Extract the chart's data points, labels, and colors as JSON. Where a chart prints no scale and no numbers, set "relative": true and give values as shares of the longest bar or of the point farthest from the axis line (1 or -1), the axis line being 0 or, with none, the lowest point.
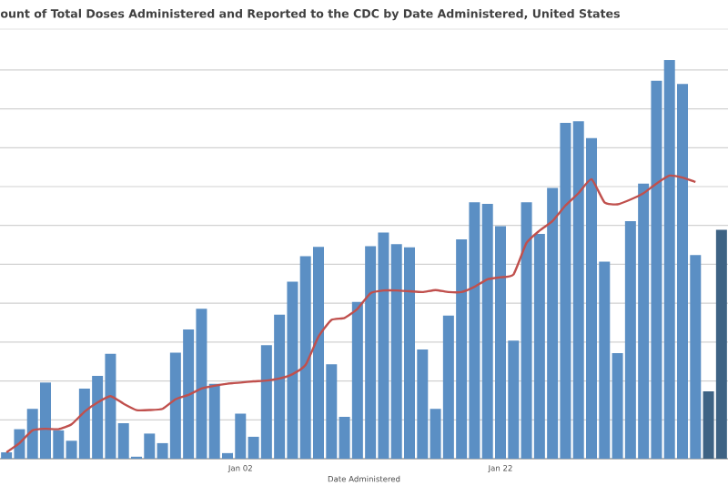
{
  "chart_data": {
    "type": "bar",
    "title": "ount of Total Doses Administered and Reported to the CDC by Date Administered, United States",
    "xlabel": "Date Administered",
    "relative": true,
    "grid": "y",
    "categories": [
      null,
      null,
      null,
      null,
      null,
      null,
      null,
      null,
      null,
      null,
      null,
      null,
      null,
      null,
      null,
      null,
      null,
      null,
      "Jan 02",
      null,
      null,
      null,
      null,
      null,
      null,
      null,
      null,
      null,
      null,
      null,
      null,
      null,
      null,
      null,
      null,
      null,
      null,
      null,
      "Jan 22",
      null,
      null,
      null,
      null,
      null,
      null,
      null,
      null,
      null,
      null,
      null,
      null,
      null,
      null,
      null,
      null,
      null
    ],
    "series": [
      {
        "type": "bar",
        "colors": [
          "#5b8fc4",
          "#5b8fc4",
          "#5b8fc4",
          "#5b8fc4",
          "#5b8fc4",
          "#5b8fc4",
          "#5b8fc4",
          "#5b8fc4",
          "#5b8fc4",
          "#5b8fc4",
          "#5b8fc4",
          "#5b8fc4",
          "#5b8fc4",
          "#5b8fc4",
          "#5b8fc4",
          "#5b8fc4",
          "#5b8fc4",
          "#5b8fc4",
          "#5b8fc4",
          "#5b8fc4",
          "#5b8fc4",
          "#5b8fc4",
          "#5b8fc4",
          "#5b8fc4",
          "#5b8fc4",
          "#5b8fc4",
          "#5b8fc4",
          "#5b8fc4",
          "#5b8fc4",
          "#5b8fc4",
          "#5b8fc4",
          "#5b8fc4",
          "#5b8fc4",
          "#5b8fc4",
          "#5b8fc4",
          "#5b8fc4",
          "#5b8fc4",
          "#5b8fc4",
          "#5b8fc4",
          "#5b8fc4",
          "#5b8fc4",
          "#5b8fc4",
          "#5b8fc4",
          "#5b8fc4",
          "#5b8fc4",
          "#5b8fc4",
          "#5b8fc4",
          "#5b8fc4",
          "#5b8fc4",
          "#5b8fc4",
          "#5b8fc4",
          "#5b8fc4",
          "#5b8fc4",
          "#5b8fc4",
          "#3e6384",
          "#3e6384"
        ],
        "values": [
          0.016,
          0.074,
          0.125,
          0.191,
          0.071,
          0.045,
          0.176,
          0.208,
          0.263,
          0.089,
          0.005,
          0.063,
          0.039,
          0.266,
          0.324,
          0.376,
          0.188,
          0.014,
          0.113,
          0.055,
          0.285,
          0.361,
          0.444,
          0.508,
          0.531,
          0.237,
          0.105,
          0.393,
          0.533,
          0.567,
          0.538,
          0.53,
          0.274,
          0.125,
          0.359,
          0.55,
          0.643,
          0.639,
          0.583,
          0.296,
          0.643,
          0.564,
          0.679,
          0.842,
          0.846,
          0.804,
          0.494,
          0.265,
          0.596,
          0.69,
          0.948,
          1,
          0.94,
          0.511,
          0.169,
          0.574
        ]
      },
      {
        "type": "line",
        "color": "#c0504d",
        "values": [
          0.016,
          0.039,
          0.071,
          0.075,
          0.074,
          0.086,
          0.118,
          0.141,
          0.157,
          0.138,
          0.122,
          0.122,
          0.125,
          0.149,
          0.16,
          0.176,
          0.183,
          0.188,
          0.191,
          0.194,
          0.196,
          0.201,
          0.212,
          0.235,
          0.306,
          0.348,
          0.353,
          0.376,
          0.415,
          0.422,
          0.422,
          0.42,
          0.418,
          0.423,
          0.418,
          0.418,
          0.431,
          0.45,
          0.455,
          0.462,
          0.541,
          0.572,
          0.596,
          0.635,
          0.666,
          0.701,
          0.643,
          0.638,
          0.65,
          0.666,
          0.69,
          0.71,
          0.705,
          0.694,
          null,
          null
        ]
      }
    ]
  }
}
